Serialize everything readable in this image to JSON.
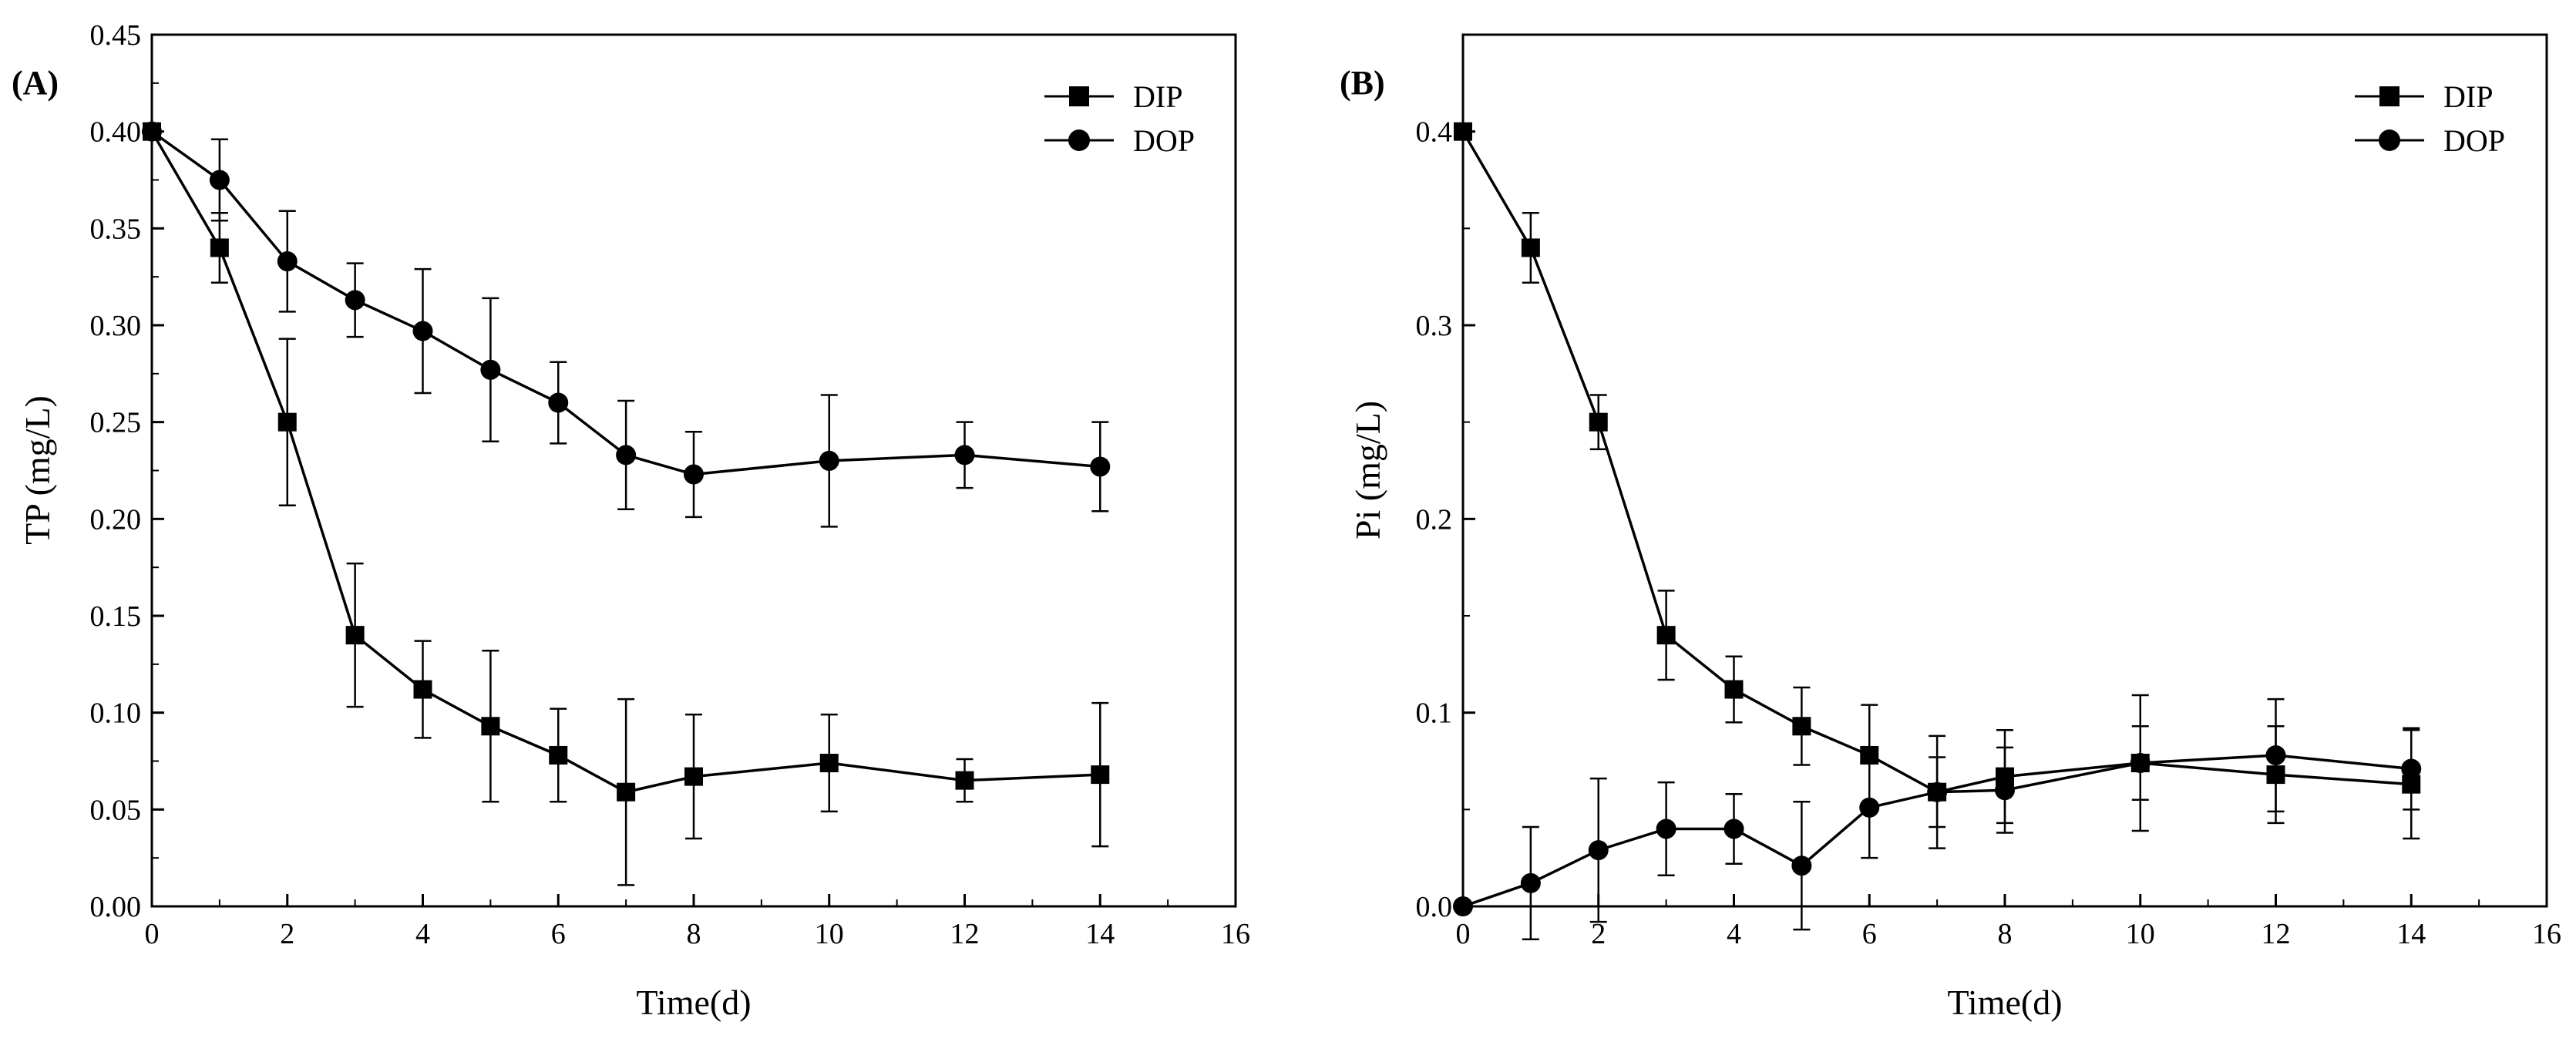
{
  "chart_data": [
    {
      "type": "line",
      "panel_label": "(A)",
      "xlabel": "Time(d)",
      "ylabel": "TP (mg/L)",
      "xlim": [
        0,
        16
      ],
      "ylim": [
        0,
        0.45
      ],
      "xticks": [
        0,
        2,
        4,
        6,
        8,
        10,
        12,
        14,
        16
      ],
      "xtick_labels": [
        "0",
        "2",
        "4",
        "6",
        "8",
        "10",
        "12",
        "14",
        "16"
      ],
      "yticks": [
        0,
        0.05,
        0.1,
        0.15,
        0.2,
        0.25,
        0.3,
        0.35,
        0.4,
        0.45
      ],
      "ytick_labels": [
        "0.00",
        "0.05",
        "0.10",
        "0.15",
        "0.20",
        "0.25",
        "0.30",
        "0.35",
        "0.40",
        "0.45"
      ],
      "legend_position": "top-right",
      "series": [
        {
          "name": "DIP",
          "marker": "square",
          "x": [
            0,
            1,
            2,
            3,
            4,
            5,
            6,
            7,
            8,
            10,
            12,
            14
          ],
          "y": [
            0.4,
            0.34,
            0.25,
            0.14,
            0.112,
            0.093,
            0.078,
            0.059,
            0.067,
            0.074,
            0.065,
            0.068
          ],
          "err": [
            0,
            0.018,
            0.043,
            0.037,
            0.025,
            0.039,
            0.024,
            0.048,
            0.032,
            0.025,
            0.011,
            0.037
          ]
        },
        {
          "name": "DOP",
          "marker": "circle",
          "x": [
            0,
            1,
            2,
            3,
            4,
            5,
            6,
            7,
            8,
            10,
            12,
            14
          ],
          "y": [
            0.4,
            0.375,
            0.333,
            0.313,
            0.297,
            0.277,
            0.26,
            0.233,
            0.223,
            0.23,
            0.233,
            0.227
          ],
          "err": [
            0,
            0.021,
            0.026,
            0.019,
            0.032,
            0.037,
            0.021,
            0.028,
            0.022,
            0.034,
            0.017,
            0.023
          ]
        }
      ]
    },
    {
      "type": "line",
      "panel_label": "(B)",
      "xlabel": "Time(d)",
      "ylabel": "Pi (mg/L)",
      "xlim": [
        0,
        16
      ],
      "ylim": [
        0,
        0.45
      ],
      "xticks": [
        0,
        2,
        4,
        6,
        8,
        10,
        12,
        14,
        16
      ],
      "xtick_labels": [
        "0",
        "2",
        "4",
        "6",
        "8",
        "10",
        "12",
        "14",
        "16"
      ],
      "yticks": [
        0,
        0.1,
        0.2,
        0.3,
        0.4
      ],
      "ytick_labels": [
        "0.0",
        "0.1",
        "0.2",
        "0.3",
        "0.4"
      ],
      "legend_position": "top-right",
      "series": [
        {
          "name": "DIP",
          "marker": "square",
          "x": [
            0,
            1,
            2,
            3,
            4,
            5,
            6,
            7,
            8,
            10,
            12,
            14
          ],
          "y": [
            0.4,
            0.34,
            0.25,
            0.14,
            0.112,
            0.093,
            0.078,
            0.059,
            0.067,
            0.074,
            0.068,
            0.063
          ],
          "err": [
            0,
            0.018,
            0.014,
            0.023,
            0.017,
            0.02,
            0.026,
            0.029,
            0.024,
            0.019,
            0.025,
            0.028
          ]
        },
        {
          "name": "DOP",
          "marker": "circle",
          "x": [
            0,
            1,
            2,
            3,
            4,
            5,
            6,
            7,
            8,
            10,
            12,
            14
          ],
          "y": [
            0.0,
            0.012,
            0.029,
            0.04,
            0.04,
            0.021,
            0.051,
            0.059,
            0.06,
            0.074,
            0.078,
            0.071
          ],
          "err": [
            0,
            0.029,
            0.037,
            0.024,
            0.018,
            0.033,
            0.026,
            0.018,
            0.022,
            0.035,
            0.029,
            0.021
          ]
        }
      ]
    }
  ]
}
